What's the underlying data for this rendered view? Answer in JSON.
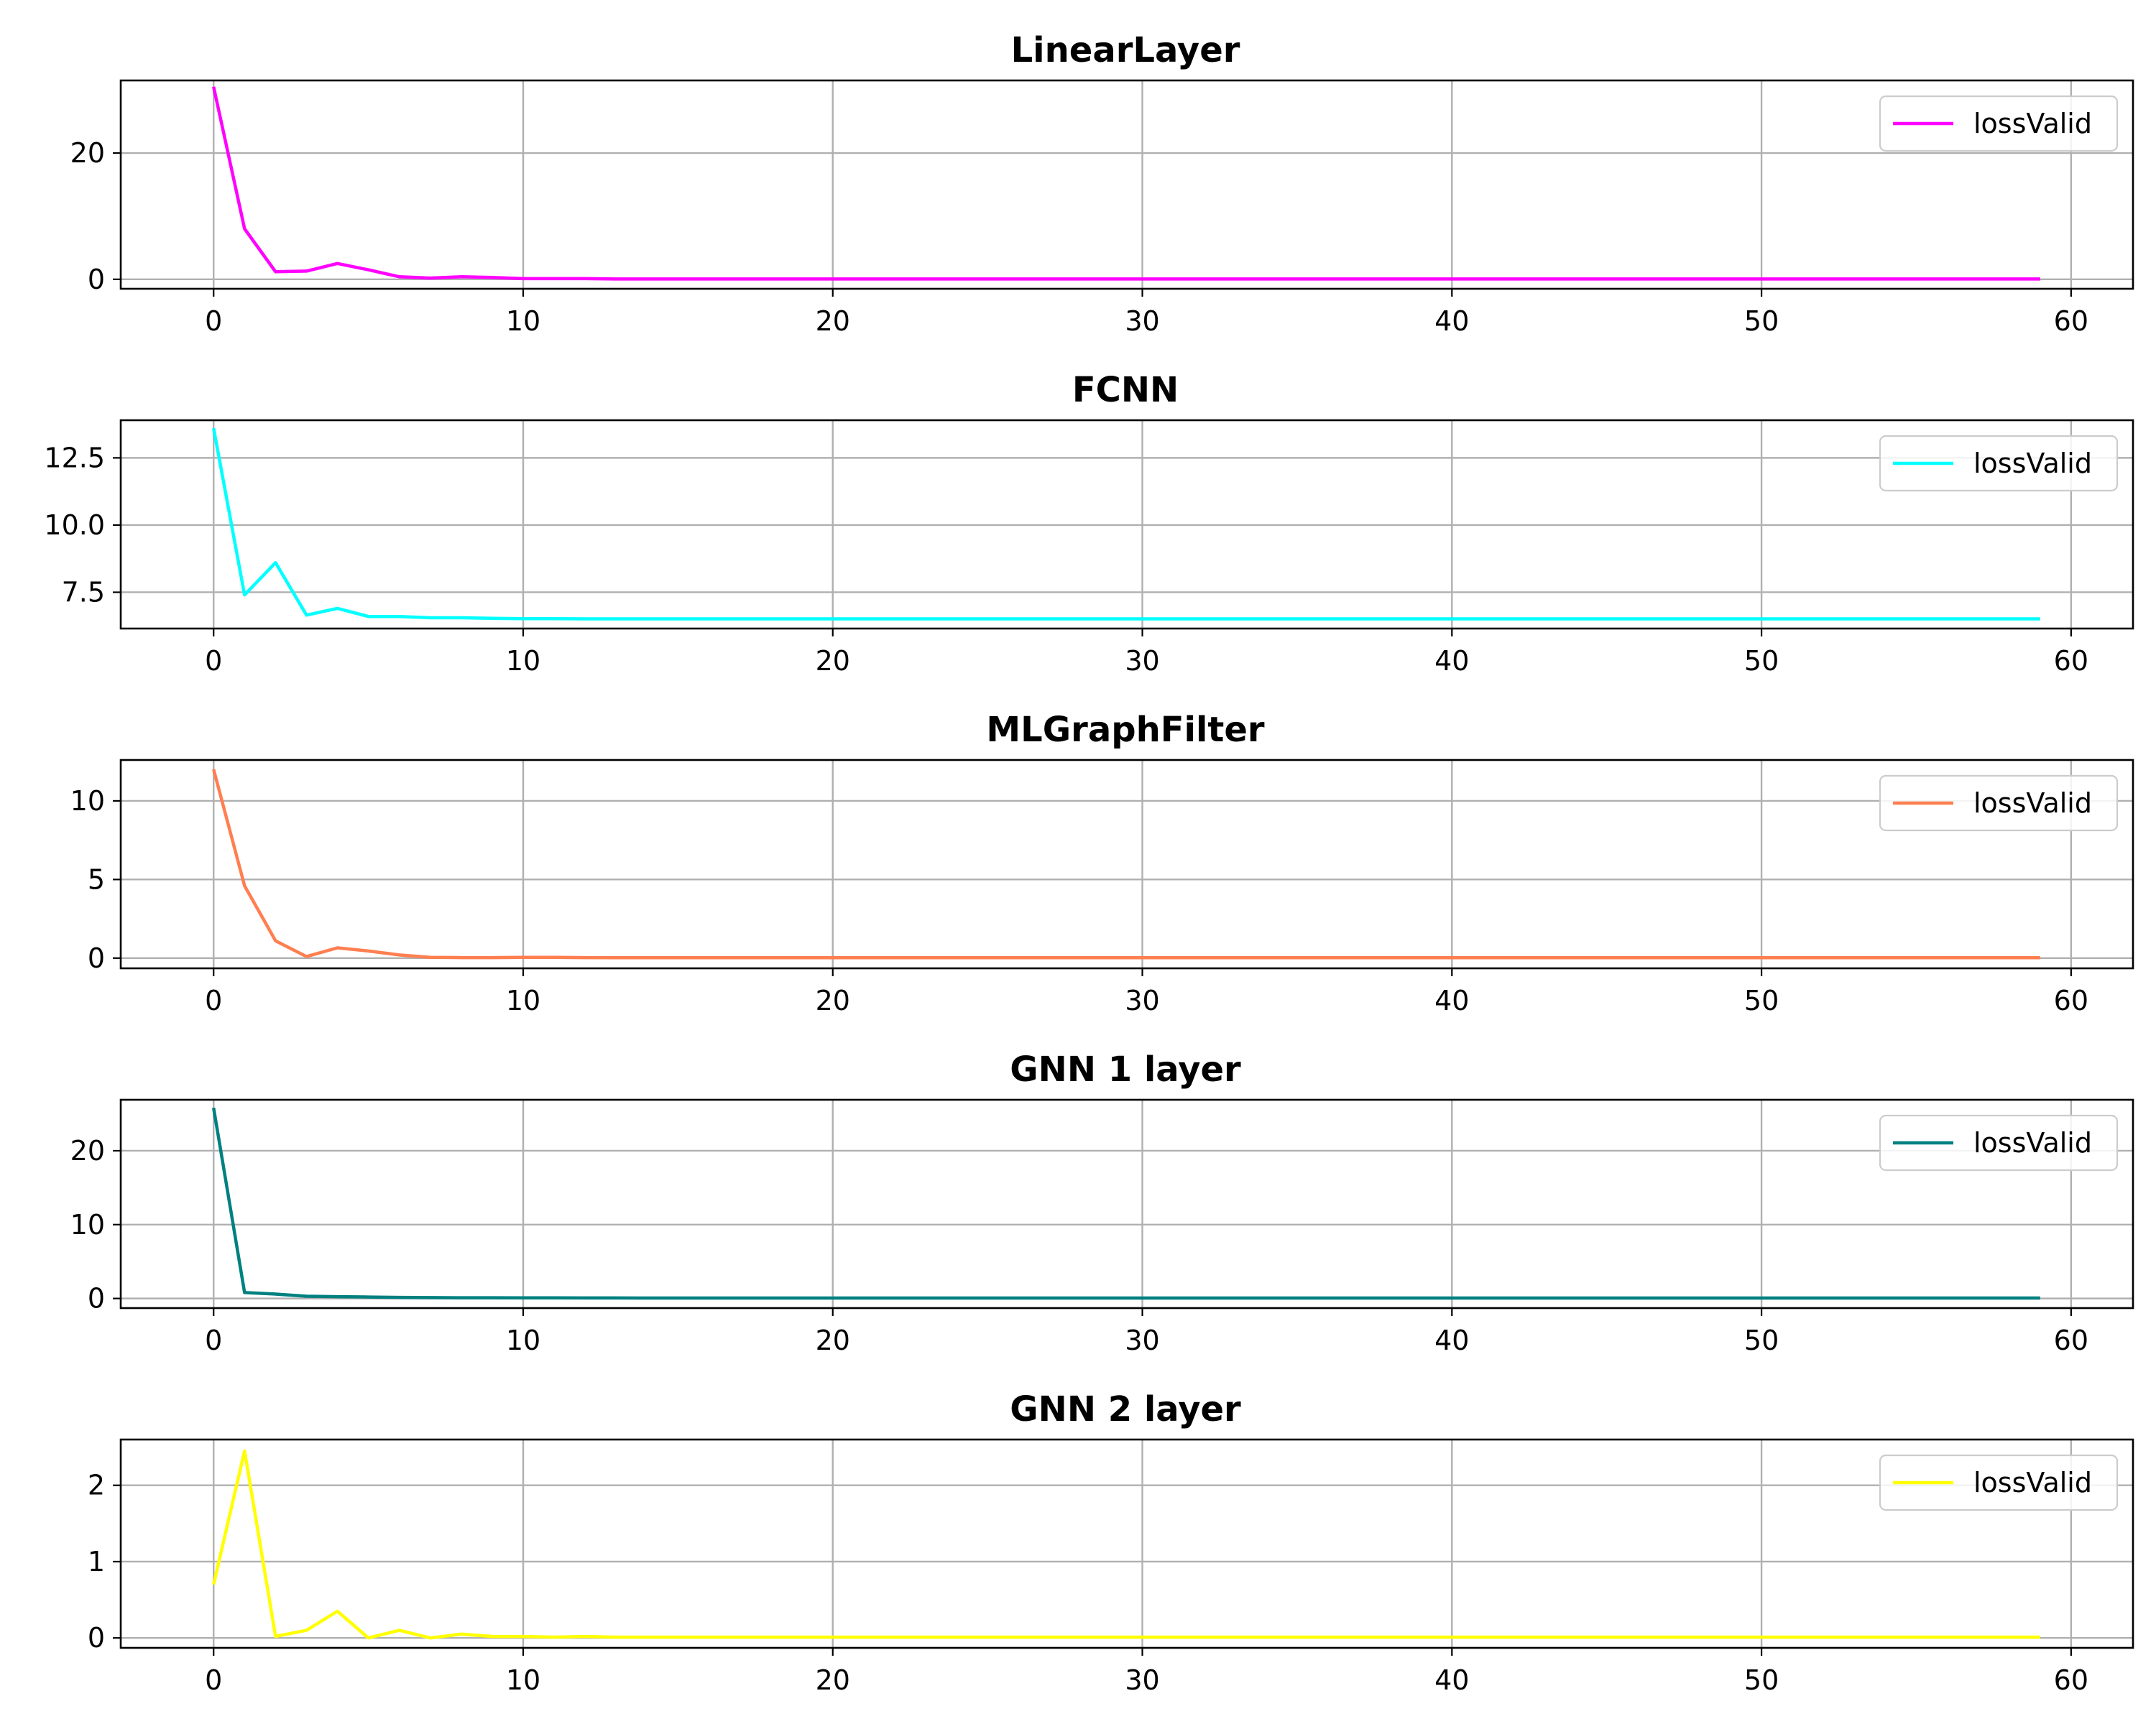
{
  "chart_data": [
    {
      "type": "line",
      "title": "LinearLayer",
      "xlabel": "",
      "ylabel": "",
      "xlim": [
        -3,
        62
      ],
      "ylim": [
        -1.5,
        31.5
      ],
      "xticks": [
        0,
        10,
        20,
        30,
        40,
        50,
        60
      ],
      "yticks": [
        0,
        20
      ],
      "grid": true,
      "legend_position": "top-right",
      "series": [
        {
          "name": "lossValid",
          "color": "#ff00ff",
          "x": [
            0,
            1,
            2,
            3,
            4,
            5,
            6,
            7,
            8,
            9,
            10,
            11,
            12,
            13,
            14,
            15,
            16,
            17,
            18,
            19,
            20,
            21,
            22,
            23,
            24,
            25,
            26,
            27,
            28,
            29,
            30,
            31,
            32,
            33,
            34,
            35,
            36,
            37,
            38,
            39,
            40,
            41,
            42,
            43,
            44,
            45,
            46,
            47,
            48,
            49,
            50,
            51,
            52,
            53,
            54,
            55,
            56,
            57,
            58,
            59
          ],
          "values": [
            30.5,
            8.0,
            1.2,
            1.3,
            2.5,
            1.5,
            0.4,
            0.2,
            0.4,
            0.3,
            0.1,
            0.1,
            0.1,
            0.05,
            0.05,
            0.05,
            0.05,
            0.05,
            0.05,
            0.05,
            0.05,
            0.05,
            0.05,
            0.05,
            0.05,
            0.05,
            0.05,
            0.05,
            0.05,
            0.05,
            0.05,
            0.05,
            0.05,
            0.05,
            0.05,
            0.05,
            0.05,
            0.05,
            0.05,
            0.05,
            0.05,
            0.05,
            0.05,
            0.05,
            0.05,
            0.05,
            0.05,
            0.05,
            0.05,
            0.05,
            0.05,
            0.05,
            0.05,
            0.05,
            0.05,
            0.05,
            0.05,
            0.05,
            0.05,
            0.05
          ]
        }
      ]
    },
    {
      "type": "line",
      "title": "FCNN",
      "xlabel": "",
      "ylabel": "",
      "xlim": [
        -3,
        62
      ],
      "ylim": [
        6.15,
        13.9
      ],
      "xticks": [
        0,
        10,
        20,
        30,
        40,
        50,
        60
      ],
      "yticks": [
        7.5,
        10.0,
        12.5
      ],
      "grid": true,
      "legend_position": "top-right",
      "series": [
        {
          "name": "lossValid",
          "color": "#00ffff",
          "x": [
            0,
            1,
            2,
            3,
            4,
            5,
            6,
            7,
            8,
            9,
            10,
            11,
            12,
            13,
            14,
            15,
            16,
            17,
            18,
            19,
            20,
            21,
            22,
            23,
            24,
            25,
            26,
            27,
            28,
            29,
            30,
            31,
            32,
            33,
            34,
            35,
            36,
            37,
            38,
            39,
            40,
            41,
            42,
            43,
            44,
            45,
            46,
            47,
            48,
            49,
            50,
            51,
            52,
            53,
            54,
            55,
            56,
            57,
            58,
            59
          ],
          "values": [
            13.6,
            7.4,
            8.6,
            6.65,
            6.9,
            6.6,
            6.6,
            6.55,
            6.55,
            6.53,
            6.52,
            6.52,
            6.51,
            6.51,
            6.51,
            6.51,
            6.51,
            6.51,
            6.51,
            6.51,
            6.51,
            6.51,
            6.51,
            6.51,
            6.51,
            6.51,
            6.51,
            6.51,
            6.51,
            6.51,
            6.51,
            6.51,
            6.51,
            6.51,
            6.51,
            6.51,
            6.51,
            6.51,
            6.51,
            6.51,
            6.51,
            6.51,
            6.51,
            6.51,
            6.51,
            6.51,
            6.51,
            6.51,
            6.51,
            6.51,
            6.51,
            6.51,
            6.51,
            6.51,
            6.51,
            6.51,
            6.51,
            6.51,
            6.51,
            6.51
          ]
        }
      ]
    },
    {
      "type": "line",
      "title": "MLGraphFilter",
      "xlabel": "",
      "ylabel": "",
      "xlim": [
        -3,
        62
      ],
      "ylim": [
        -0.65,
        12.6
      ],
      "xticks": [
        0,
        10,
        20,
        30,
        40,
        50,
        60
      ],
      "yticks": [
        0,
        5,
        10
      ],
      "grid": true,
      "legend_position": "top-right",
      "series": [
        {
          "name": "lossValid",
          "color": "#ff7f50",
          "x": [
            0,
            1,
            2,
            3,
            4,
            5,
            6,
            7,
            8,
            9,
            10,
            11,
            12,
            13,
            14,
            15,
            16,
            17,
            18,
            19,
            20,
            21,
            22,
            23,
            24,
            25,
            26,
            27,
            28,
            29,
            30,
            31,
            32,
            33,
            34,
            35,
            36,
            37,
            38,
            39,
            40,
            41,
            42,
            43,
            44,
            45,
            46,
            47,
            48,
            49,
            50,
            51,
            52,
            53,
            54,
            55,
            56,
            57,
            58,
            59
          ],
          "values": [
            12.0,
            4.6,
            1.1,
            0.1,
            0.65,
            0.45,
            0.2,
            0.05,
            0.03,
            0.03,
            0.05,
            0.05,
            0.03,
            0.02,
            0.02,
            0.02,
            0.02,
            0.02,
            0.02,
            0.02,
            0.02,
            0.02,
            0.02,
            0.02,
            0.02,
            0.02,
            0.02,
            0.02,
            0.02,
            0.02,
            0.02,
            0.02,
            0.02,
            0.02,
            0.02,
            0.02,
            0.02,
            0.02,
            0.02,
            0.02,
            0.02,
            0.02,
            0.02,
            0.02,
            0.02,
            0.02,
            0.02,
            0.02,
            0.02,
            0.02,
            0.02,
            0.02,
            0.02,
            0.02,
            0.02,
            0.02,
            0.02,
            0.02,
            0.02,
            0.02
          ]
        }
      ]
    },
    {
      "type": "line",
      "title": "GNN 1 layer",
      "xlabel": "",
      "ylabel": "",
      "xlim": [
        -3,
        62
      ],
      "ylim": [
        -1.3,
        26.9
      ],
      "xticks": [
        0,
        10,
        20,
        30,
        40,
        50,
        60
      ],
      "yticks": [
        0,
        10,
        20
      ],
      "grid": true,
      "legend_position": "top-right",
      "series": [
        {
          "name": "lossValid",
          "color": "#008080",
          "x": [
            0,
            1,
            2,
            3,
            4,
            5,
            6,
            7,
            8,
            9,
            10,
            11,
            12,
            13,
            14,
            15,
            16,
            17,
            18,
            19,
            20,
            21,
            22,
            23,
            24,
            25,
            26,
            27,
            28,
            29,
            30,
            31,
            32,
            33,
            34,
            35,
            36,
            37,
            38,
            39,
            40,
            41,
            42,
            43,
            44,
            45,
            46,
            47,
            48,
            49,
            50,
            51,
            52,
            53,
            54,
            55,
            56,
            57,
            58,
            59
          ],
          "values": [
            25.8,
            0.8,
            0.6,
            0.3,
            0.25,
            0.2,
            0.15,
            0.12,
            0.1,
            0.1,
            0.08,
            0.08,
            0.07,
            0.07,
            0.06,
            0.06,
            0.06,
            0.06,
            0.06,
            0.06,
            0.06,
            0.06,
            0.06,
            0.06,
            0.06,
            0.06,
            0.06,
            0.06,
            0.06,
            0.06,
            0.06,
            0.06,
            0.06,
            0.06,
            0.06,
            0.06,
            0.06,
            0.06,
            0.06,
            0.06,
            0.06,
            0.06,
            0.06,
            0.06,
            0.06,
            0.06,
            0.06,
            0.06,
            0.06,
            0.06,
            0.06,
            0.06,
            0.06,
            0.06,
            0.06,
            0.06,
            0.06,
            0.06,
            0.06,
            0.06
          ]
        }
      ]
    },
    {
      "type": "line",
      "title": "GNN 2 layer",
      "xlabel": "",
      "ylabel": "",
      "xlim": [
        -3,
        62
      ],
      "ylim": [
        -0.13,
        2.6
      ],
      "xticks": [
        0,
        10,
        20,
        30,
        40,
        50,
        60
      ],
      "yticks": [
        0,
        1,
        2
      ],
      "grid": true,
      "legend_position": "top-right",
      "series": [
        {
          "name": "lossValid",
          "color": "#ffff00",
          "x": [
            0,
            1,
            2,
            3,
            4,
            5,
            6,
            7,
            8,
            9,
            10,
            11,
            12,
            13,
            14,
            15,
            16,
            17,
            18,
            19,
            20,
            21,
            22,
            23,
            24,
            25,
            26,
            27,
            28,
            29,
            30,
            31,
            32,
            33,
            34,
            35,
            36,
            37,
            38,
            39,
            40,
            41,
            42,
            43,
            44,
            45,
            46,
            47,
            48,
            49,
            50,
            51,
            52,
            53,
            54,
            55,
            56,
            57,
            58,
            59
          ],
          "values": [
            0.7,
            2.45,
            0.02,
            0.1,
            0.35,
            0.0,
            0.1,
            0.0,
            0.05,
            0.02,
            0.02,
            0.01,
            0.02,
            0.01,
            0.01,
            0.01,
            0.01,
            0.01,
            0.01,
            0.01,
            0.01,
            0.01,
            0.01,
            0.01,
            0.01,
            0.01,
            0.01,
            0.01,
            0.01,
            0.01,
            0.01,
            0.01,
            0.01,
            0.01,
            0.01,
            0.01,
            0.01,
            0.01,
            0.01,
            0.01,
            0.01,
            0.01,
            0.01,
            0.01,
            0.01,
            0.01,
            0.01,
            0.01,
            0.01,
            0.01,
            0.01,
            0.01,
            0.01,
            0.01,
            0.01,
            0.01,
            0.01,
            0.01,
            0.01,
            0.01
          ]
        }
      ]
    }
  ]
}
